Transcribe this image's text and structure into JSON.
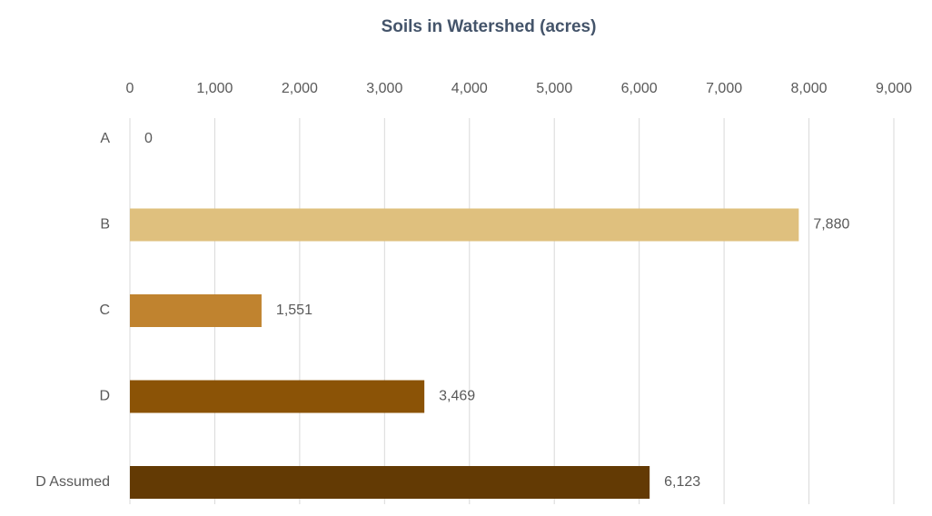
{
  "chart_data": {
    "type": "bar",
    "orientation": "horizontal",
    "title": "Soils in Watershed (acres)",
    "categories": [
      "A",
      "B",
      "C",
      "D",
      "D Assumed"
    ],
    "values": [
      0,
      7880,
      1551,
      3469,
      6123
    ],
    "value_labels": [
      "0",
      "7,880",
      "1,551",
      "3,469",
      "6,123"
    ],
    "colors": [
      "#efdca8",
      "#dfc07e",
      "#c0832f",
      "#8b5306",
      "#633a04"
    ],
    "xlim": [
      0,
      9000
    ],
    "xticks": [
      0,
      {
        "value": 1000,
        "label": "1,000"
      },
      {
        "value": 2000,
        "label": "2,000"
      },
      {
        "value": 3000,
        "label": "3,000"
      },
      {
        "value": 4000,
        "label": "4,000"
      },
      {
        "value": 5000,
        "label": "5,000"
      },
      {
        "value": 6000,
        "label": "6,000"
      },
      {
        "value": 7000,
        "label": "7,000"
      },
      {
        "value": 8000,
        "label": "8,000"
      },
      {
        "value": 9000,
        "label": "9,000"
      }
    ],
    "grid": true
  }
}
